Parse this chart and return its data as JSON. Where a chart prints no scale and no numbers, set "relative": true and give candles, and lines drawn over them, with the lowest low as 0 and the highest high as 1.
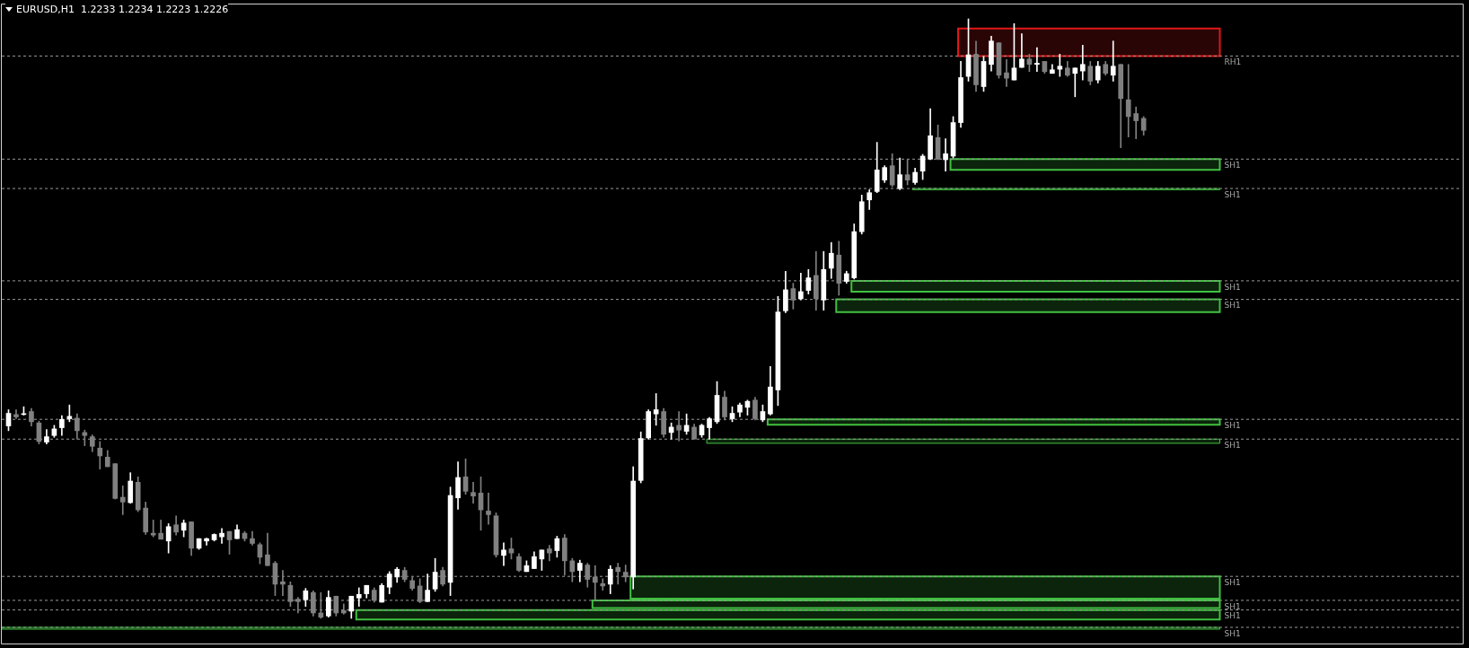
{
  "chart_data": {
    "type": "candlestick",
    "title": "EURUSD,H1  1.2233 1.2234 1.2223 1.2226",
    "relative": true,
    "categories": [
      null,
      null,
      null,
      null,
      null,
      null,
      null,
      null,
      null,
      null,
      null,
      null,
      null,
      null,
      null,
      null,
      null,
      null,
      null,
      null,
      null,
      null,
      null,
      null,
      null,
      null,
      null,
      null,
      null,
      null,
      null,
      null,
      null,
      null,
      null,
      null,
      null,
      null,
      null,
      null,
      null,
      null,
      null,
      null,
      null,
      null,
      null,
      null,
      null,
      null,
      null,
      null,
      null,
      null,
      null,
      null,
      null,
      null,
      null,
      null,
      null,
      null,
      null,
      null,
      null,
      null,
      null,
      null,
      null,
      null,
      null,
      null,
      null,
      null,
      null,
      null,
      null,
      null,
      null,
      null,
      null,
      null,
      null,
      null,
      null,
      null,
      null,
      null,
      null,
      null,
      null,
      null,
      null,
      null,
      null,
      null,
      null,
      null,
      null,
      null,
      null,
      null,
      null,
      null,
      null,
      null,
      null,
      null,
      null,
      null,
      null,
      null,
      null,
      null,
      null,
      null,
      null,
      null,
      null,
      null,
      null,
      null,
      null,
      null,
      null,
      null,
      null,
      null,
      null,
      null,
      null,
      null,
      null,
      null,
      null,
      null,
      null,
      null,
      null,
      null,
      null,
      null,
      null,
      null,
      null,
      null,
      null,
      null,
      null,
      null
    ],
    "ohlc": [
      [
        0.321,
        0.348,
        0.313,
        0.342
      ],
      [
        0.34,
        0.348,
        0.333,
        0.336
      ],
      [
        0.34,
        0.353,
        0.339,
        0.341
      ],
      [
        0.345,
        0.35,
        0.321,
        0.328
      ],
      [
        0.326,
        0.329,
        0.291,
        0.295
      ],
      [
        0.294,
        0.315,
        0.291,
        0.303
      ],
      [
        0.305,
        0.322,
        0.302,
        0.316
      ],
      [
        0.318,
        0.338,
        0.305,
        0.332
      ],
      [
        0.333,
        0.356,
        0.328,
        0.337
      ],
      [
        0.334,
        0.341,
        0.299,
        0.313
      ],
      [
        0.31,
        0.314,
        0.288,
        0.305
      ],
      [
        0.303,
        0.306,
        0.278,
        0.287
      ],
      [
        0.284,
        0.295,
        0.249,
        0.271
      ],
      [
        0.269,
        0.28,
        0.253,
        0.253
      ],
      [
        0.258,
        0.258,
        0.199,
        0.2
      ],
      [
        0.202,
        0.221,
        0.173,
        0.194
      ],
      [
        0.193,
        0.243,
        0.192,
        0.229
      ],
      [
        0.227,
        0.236,
        0.178,
        0.181
      ],
      [
        0.184,
        0.194,
        0.14,
        0.144
      ],
      [
        0.142,
        0.164,
        0.136,
        0.139
      ],
      [
        0.142,
        0.164,
        0.132,
        0.132
      ],
      [
        0.129,
        0.158,
        0.109,
        0.153
      ],
      [
        0.156,
        0.171,
        0.139,
        0.144
      ],
      [
        0.147,
        0.164,
        0.136,
        0.159
      ],
      [
        0.161,
        0.161,
        0.105,
        0.117
      ],
      [
        0.117,
        0.133,
        0.115,
        0.133
      ],
      [
        0.129,
        0.134,
        0.122,
        0.133
      ],
      [
        0.131,
        0.141,
        0.129,
        0.14
      ],
      [
        0.136,
        0.15,
        0.125,
        0.142
      ],
      [
        0.145,
        0.145,
        0.107,
        0.131
      ],
      [
        0.133,
        0.156,
        0.133,
        0.148
      ],
      [
        0.142,
        0.145,
        0.129,
        0.133
      ],
      [
        0.133,
        0.145,
        0.122,
        0.125
      ],
      [
        0.123,
        0.126,
        0.091,
        0.102
      ],
      [
        0.106,
        0.142,
        0.088,
        0.088
      ],
      [
        0.092,
        0.095,
        0.038,
        0.057
      ],
      [
        0.061,
        0.08,
        0.038,
        0.057
      ],
      [
        0.055,
        0.061,
        0.02,
        0.028
      ],
      [
        0.032,
        0.035,
        0.009,
        0.028
      ],
      [
        0.031,
        0.05,
        0.02,
        0.046
      ],
      [
        0.043,
        0.046,
        0.004,
        0.009
      ],
      [
        0.009,
        0.043,
        0.0,
        0.002
      ],
      [
        0.004,
        0.046,
        0.002,
        0.035
      ],
      [
        0.037,
        0.037,
        0.004,
        0.009
      ],
      [
        0.013,
        0.024,
        0.007,
        0.009
      ],
      [
        0.012,
        0.037,
        0.0,
        0.037
      ],
      [
        0.034,
        0.051,
        0.02,
        0.04
      ],
      [
        0.041,
        0.055,
        0.034,
        0.055
      ],
      [
        0.047,
        0.051,
        0.027,
        0.03
      ],
      [
        0.027,
        0.058,
        0.027,
        0.055
      ],
      [
        0.052,
        0.078,
        0.041,
        0.074
      ],
      [
        0.069,
        0.085,
        0.06,
        0.082
      ],
      [
        0.08,
        0.085,
        0.061,
        0.065
      ],
      [
        0.063,
        0.069,
        0.047,
        0.05
      ],
      [
        0.054,
        0.066,
        0.026,
        0.028
      ],
      [
        0.028,
        0.074,
        0.028,
        0.047
      ],
      [
        0.049,
        0.1,
        0.045,
        0.077
      ],
      [
        0.08,
        0.085,
        0.054,
        0.057
      ],
      [
        0.06,
        0.219,
        0.038,
        0.205
      ],
      [
        0.201,
        0.261,
        0.182,
        0.235
      ],
      [
        0.236,
        0.266,
        0.207,
        0.212
      ],
      [
        0.21,
        0.227,
        0.192,
        0.204
      ],
      [
        0.209,
        0.236,
        0.147,
        0.181
      ],
      [
        0.179,
        0.209,
        0.157,
        0.173
      ],
      [
        0.171,
        0.176,
        0.102,
        0.106
      ],
      [
        0.105,
        0.126,
        0.088,
        0.114
      ],
      [
        0.116,
        0.134,
        0.099,
        0.109
      ],
      [
        0.103,
        0.108,
        0.078,
        0.08
      ],
      [
        0.078,
        0.096,
        0.078,
        0.088
      ],
      [
        0.083,
        0.111,
        0.083,
        0.103
      ],
      [
        0.099,
        0.114,
        0.08,
        0.114
      ],
      [
        0.116,
        0.122,
        0.096,
        0.109
      ],
      [
        0.113,
        0.137,
        0.102,
        0.133
      ],
      [
        0.134,
        0.14,
        0.072,
        0.096
      ],
      [
        0.096,
        0.1,
        0.061,
        0.078
      ],
      [
        0.08,
        0.097,
        0.061,
        0.092
      ],
      [
        0.089,
        0.092,
        0.052,
        0.065
      ],
      [
        0.069,
        0.088,
        0.03,
        0.06
      ],
      [
        0.058,
        0.066,
        0.047,
        0.054
      ],
      [
        0.057,
        0.088,
        0.041,
        0.082
      ],
      [
        0.085,
        0.092,
        0.057,
        0.078
      ],
      [
        0.077,
        0.089,
        0.061,
        0.069
      ],
      [
        0.069,
        0.253,
        0.049,
        0.229
      ],
      [
        0.23,
        0.311,
        0.226,
        0.3
      ],
      [
        0.301,
        0.348,
        0.299,
        0.345
      ],
      [
        0.341,
        0.375,
        0.322,
        0.348
      ],
      [
        0.345,
        0.35,
        0.302,
        0.307
      ],
      [
        0.31,
        0.326,
        0.299,
        0.319
      ],
      [
        0.322,
        0.345,
        0.296,
        0.314
      ],
      [
        0.312,
        0.341,
        0.307,
        0.322
      ],
      [
        0.319,
        0.324,
        0.299,
        0.299
      ],
      [
        0.306,
        0.324,
        0.302,
        0.322
      ],
      [
        0.318,
        0.335,
        0.299,
        0.333
      ],
      [
        0.328,
        0.395,
        0.325,
        0.372
      ],
      [
        0.369,
        0.379,
        0.331,
        0.336
      ],
      [
        0.333,
        0.353,
        0.328,
        0.342
      ],
      [
        0.344,
        0.359,
        0.336,
        0.356
      ],
      [
        0.352,
        0.364,
        0.339,
        0.362
      ],
      [
        0.364,
        0.369,
        0.331,
        0.333
      ],
      [
        0.331,
        0.356,
        0.328,
        0.345
      ],
      [
        0.341,
        0.42,
        0.339,
        0.386
      ],
      [
        0.381,
        0.537,
        0.355,
        0.511
      ],
      [
        0.513,
        0.579,
        0.51,
        0.548
      ],
      [
        0.55,
        0.559,
        0.516,
        0.531
      ],
      [
        0.533,
        0.576,
        0.531,
        0.545
      ],
      [
        0.547,
        0.582,
        0.541,
        0.568
      ],
      [
        0.572,
        0.612,
        0.514,
        0.533
      ],
      [
        0.531,
        0.612,
        0.514,
        0.582
      ],
      [
        0.584,
        0.627,
        0.567,
        0.609
      ],
      [
        0.606,
        0.629,
        0.539,
        0.559
      ],
      [
        0.562,
        0.579,
        0.559,
        0.575
      ],
      [
        0.568,
        0.658,
        0.566,
        0.645
      ],
      [
        0.645,
        0.706,
        0.641,
        0.695
      ],
      [
        0.698,
        0.715,
        0.682,
        0.71
      ],
      [
        0.712,
        0.794,
        0.71,
        0.748
      ],
      [
        0.731,
        0.755,
        0.727,
        0.752
      ],
      [
        0.755,
        0.775,
        0.72,
        0.723
      ],
      [
        0.717,
        0.768,
        0.715,
        0.74
      ],
      [
        0.74,
        0.766,
        0.723,
        0.731
      ],
      [
        0.727,
        0.751,
        0.724,
        0.744
      ],
      [
        0.746,
        0.774,
        0.732,
        0.771
      ],
      [
        0.766,
        0.85,
        0.765,
        0.805
      ],
      [
        0.802,
        0.823,
        0.765,
        0.766
      ],
      [
        0.765,
        0.8,
        0.746,
        0.775
      ],
      [
        0.771,
        0.837,
        0.768,
        0.827
      ],
      [
        0.827,
        0.929,
        0.819,
        0.902
      ],
      [
        0.904,
        1.0,
        0.896,
        0.94
      ],
      [
        0.941,
        0.963,
        0.879,
        0.89
      ],
      [
        0.887,
        0.937,
        0.879,
        0.929
      ],
      [
        0.924,
        0.971,
        0.913,
        0.963
      ],
      [
        0.96,
        0.96,
        0.901,
        0.906
      ],
      [
        0.91,
        0.932,
        0.887,
        0.901
      ],
      [
        0.898,
        0.992,
        0.898,
        0.918
      ],
      [
        0.919,
        0.975,
        0.919,
        0.933
      ],
      [
        0.933,
        0.941,
        0.912,
        0.924
      ],
      [
        0.924,
        0.952,
        0.912,
        0.926
      ],
      [
        0.929,
        0.929,
        0.909,
        0.912
      ],
      [
        0.909,
        0.924,
        0.909,
        0.915
      ],
      [
        0.916,
        0.941,
        0.904,
        0.921
      ],
      [
        0.918,
        0.929,
        0.904,
        0.906
      ],
      [
        0.909,
        0.918,
        0.87,
        0.918
      ],
      [
        0.913,
        0.956,
        0.898,
        0.924
      ],
      [
        0.921,
        0.929,
        0.89,
        0.896
      ],
      [
        0.898,
        0.929,
        0.893,
        0.921
      ],
      [
        0.924,
        0.929,
        0.906,
        0.909
      ],
      [
        0.906,
        0.963,
        0.896,
        0.921
      ],
      [
        0.924,
        0.924,
        0.785,
        0.867
      ],
      [
        0.865,
        0.924,
        0.803,
        0.837
      ],
      [
        0.842,
        0.853,
        0.8,
        0.83
      ],
      [
        0.834,
        0.837,
        0.806,
        0.814
      ]
    ],
    "bands": [
      {
        "axis": "y",
        "from": 0.938,
        "to": 0.984,
        "label": "RH1",
        "color": "#e01818"
      },
      {
        "axis": "y",
        "from": 0.748,
        "to": 0.766,
        "label": "SH1",
        "color": "#40c040"
      },
      {
        "axis": "y",
        "from": 0.715,
        "to": 0.717,
        "label": "SH1",
        "color": "#40c040"
      },
      {
        "axis": "y",
        "from": 0.545,
        "to": 0.563,
        "label": "SH1",
        "color": "#40c040"
      },
      {
        "axis": "y",
        "from": 0.511,
        "to": 0.532,
        "label": "SH1",
        "color": "#40c040"
      },
      {
        "axis": "y",
        "from": 0.323,
        "to": 0.332,
        "label": "SH1",
        "color": "#40c040"
      },
      {
        "axis": "y",
        "from": 0.292,
        "to": 0.299,
        "label": "SH1",
        "color": "#40c040"
      },
      {
        "axis": "y",
        "from": 0.033,
        "to": 0.07,
        "label": "SH1",
        "color": "#40c040"
      },
      {
        "axis": "y",
        "from": 0.017,
        "to": 0.03,
        "label": "SH1",
        "color": "#40c040"
      },
      {
        "axis": "y",
        "from": -0.002,
        "to": 0.014,
        "label": "SH1",
        "color": "#40c040"
      },
      {
        "axis": "y",
        "from": -0.018,
        "to": -0.015,
        "label": "SH1",
        "color": "#40c040"
      }
    ],
    "ref_lines": [
      {
        "axis": "y",
        "value": 0.938,
        "color": "#9a9a9a",
        "line_style": "dashed"
      },
      {
        "axis": "y",
        "value": 0.766,
        "color": "#9a9a9a",
        "line_style": "dashed"
      },
      {
        "axis": "y",
        "value": 0.717,
        "color": "#9a9a9a",
        "line_style": "dashed"
      },
      {
        "axis": "y",
        "value": 0.563,
        "color": "#9a9a9a",
        "line_style": "dashed"
      },
      {
        "axis": "y",
        "value": 0.532,
        "color": "#9a9a9a",
        "line_style": "dashed"
      },
      {
        "axis": "y",
        "value": 0.332,
        "color": "#9a9a9a",
        "line_style": "dashed"
      },
      {
        "axis": "y",
        "value": 0.299,
        "color": "#9a9a9a",
        "line_style": "dashed"
      },
      {
        "axis": "y",
        "value": 0.07,
        "color": "#9a9a9a",
        "line_style": "dashed"
      },
      {
        "axis": "y",
        "value": 0.03,
        "color": "#9a9a9a",
        "line_style": "dashed"
      },
      {
        "axis": "y",
        "value": 0.014,
        "color": "#9a9a9a",
        "line_style": "dashed"
      },
      {
        "axis": "y",
        "value": -0.015,
        "color": "#9a9a9a",
        "line_style": "dashed"
      }
    ]
  }
}
